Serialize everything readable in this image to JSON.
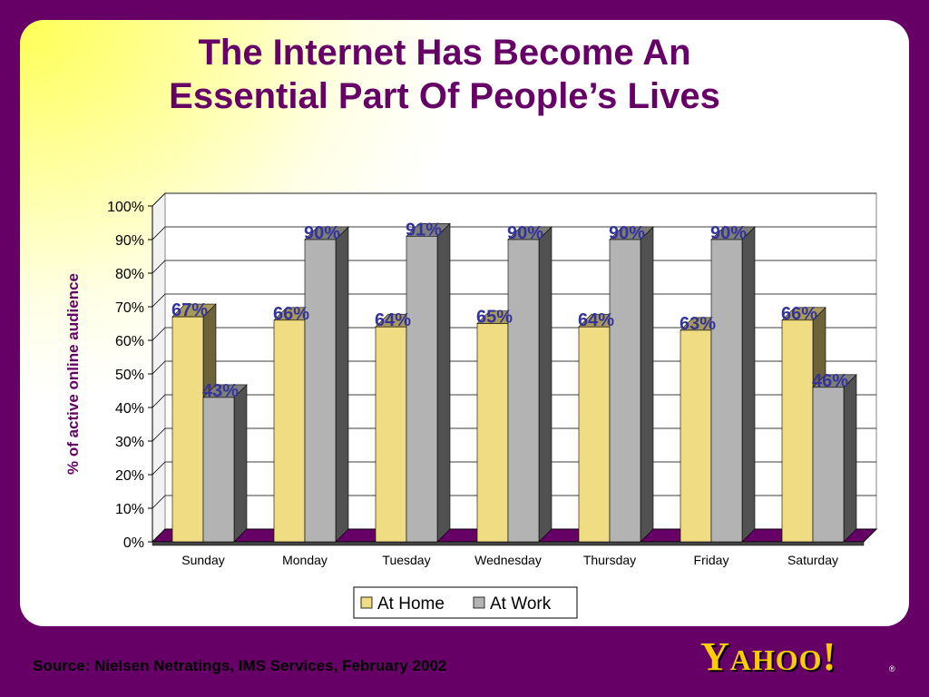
{
  "slide": {
    "title_line1": "The Internet Has Become An",
    "title_line2": "Essential Part Of People’s Lives",
    "source": "Source: Nielsen Netratings, IMS Services, February 2002",
    "logo": "YAHOO!",
    "logo_reg": "®"
  },
  "chart_data": {
    "type": "bar",
    "ylabel": "% of active online audience",
    "ylim": [
      0,
      100
    ],
    "y_ticks": [
      "0%",
      "10%",
      "20%",
      "30%",
      "40%",
      "50%",
      "60%",
      "70%",
      "80%",
      "90%",
      "100%"
    ],
    "grid": true,
    "legend_position": "bottom",
    "categories": [
      "Sunday",
      "Monday",
      "Tuesday",
      "Wednesday",
      "Thursday",
      "Friday",
      "Saturday"
    ],
    "series": [
      {
        "name": "At Home",
        "color": "#f0dc82",
        "values": [
          67,
          66,
          64,
          65,
          64,
          63,
          66
        ],
        "labels": [
          "67%",
          "66%",
          "64%",
          "65%",
          "64%",
          "63%",
          "66%"
        ]
      },
      {
        "name": "At Work",
        "color": "#b3b3b3",
        "values": [
          43,
          90,
          91,
          90,
          90,
          90,
          46
        ],
        "labels": [
          "43%",
          "90%",
          "91%",
          "90%",
          "90%",
          "90%",
          "46%"
        ]
      }
    ]
  },
  "colors": {
    "background": "#660066",
    "title": "#660066",
    "data_label": "#333399",
    "logo": "#ffcc00",
    "floor": "#660066"
  }
}
